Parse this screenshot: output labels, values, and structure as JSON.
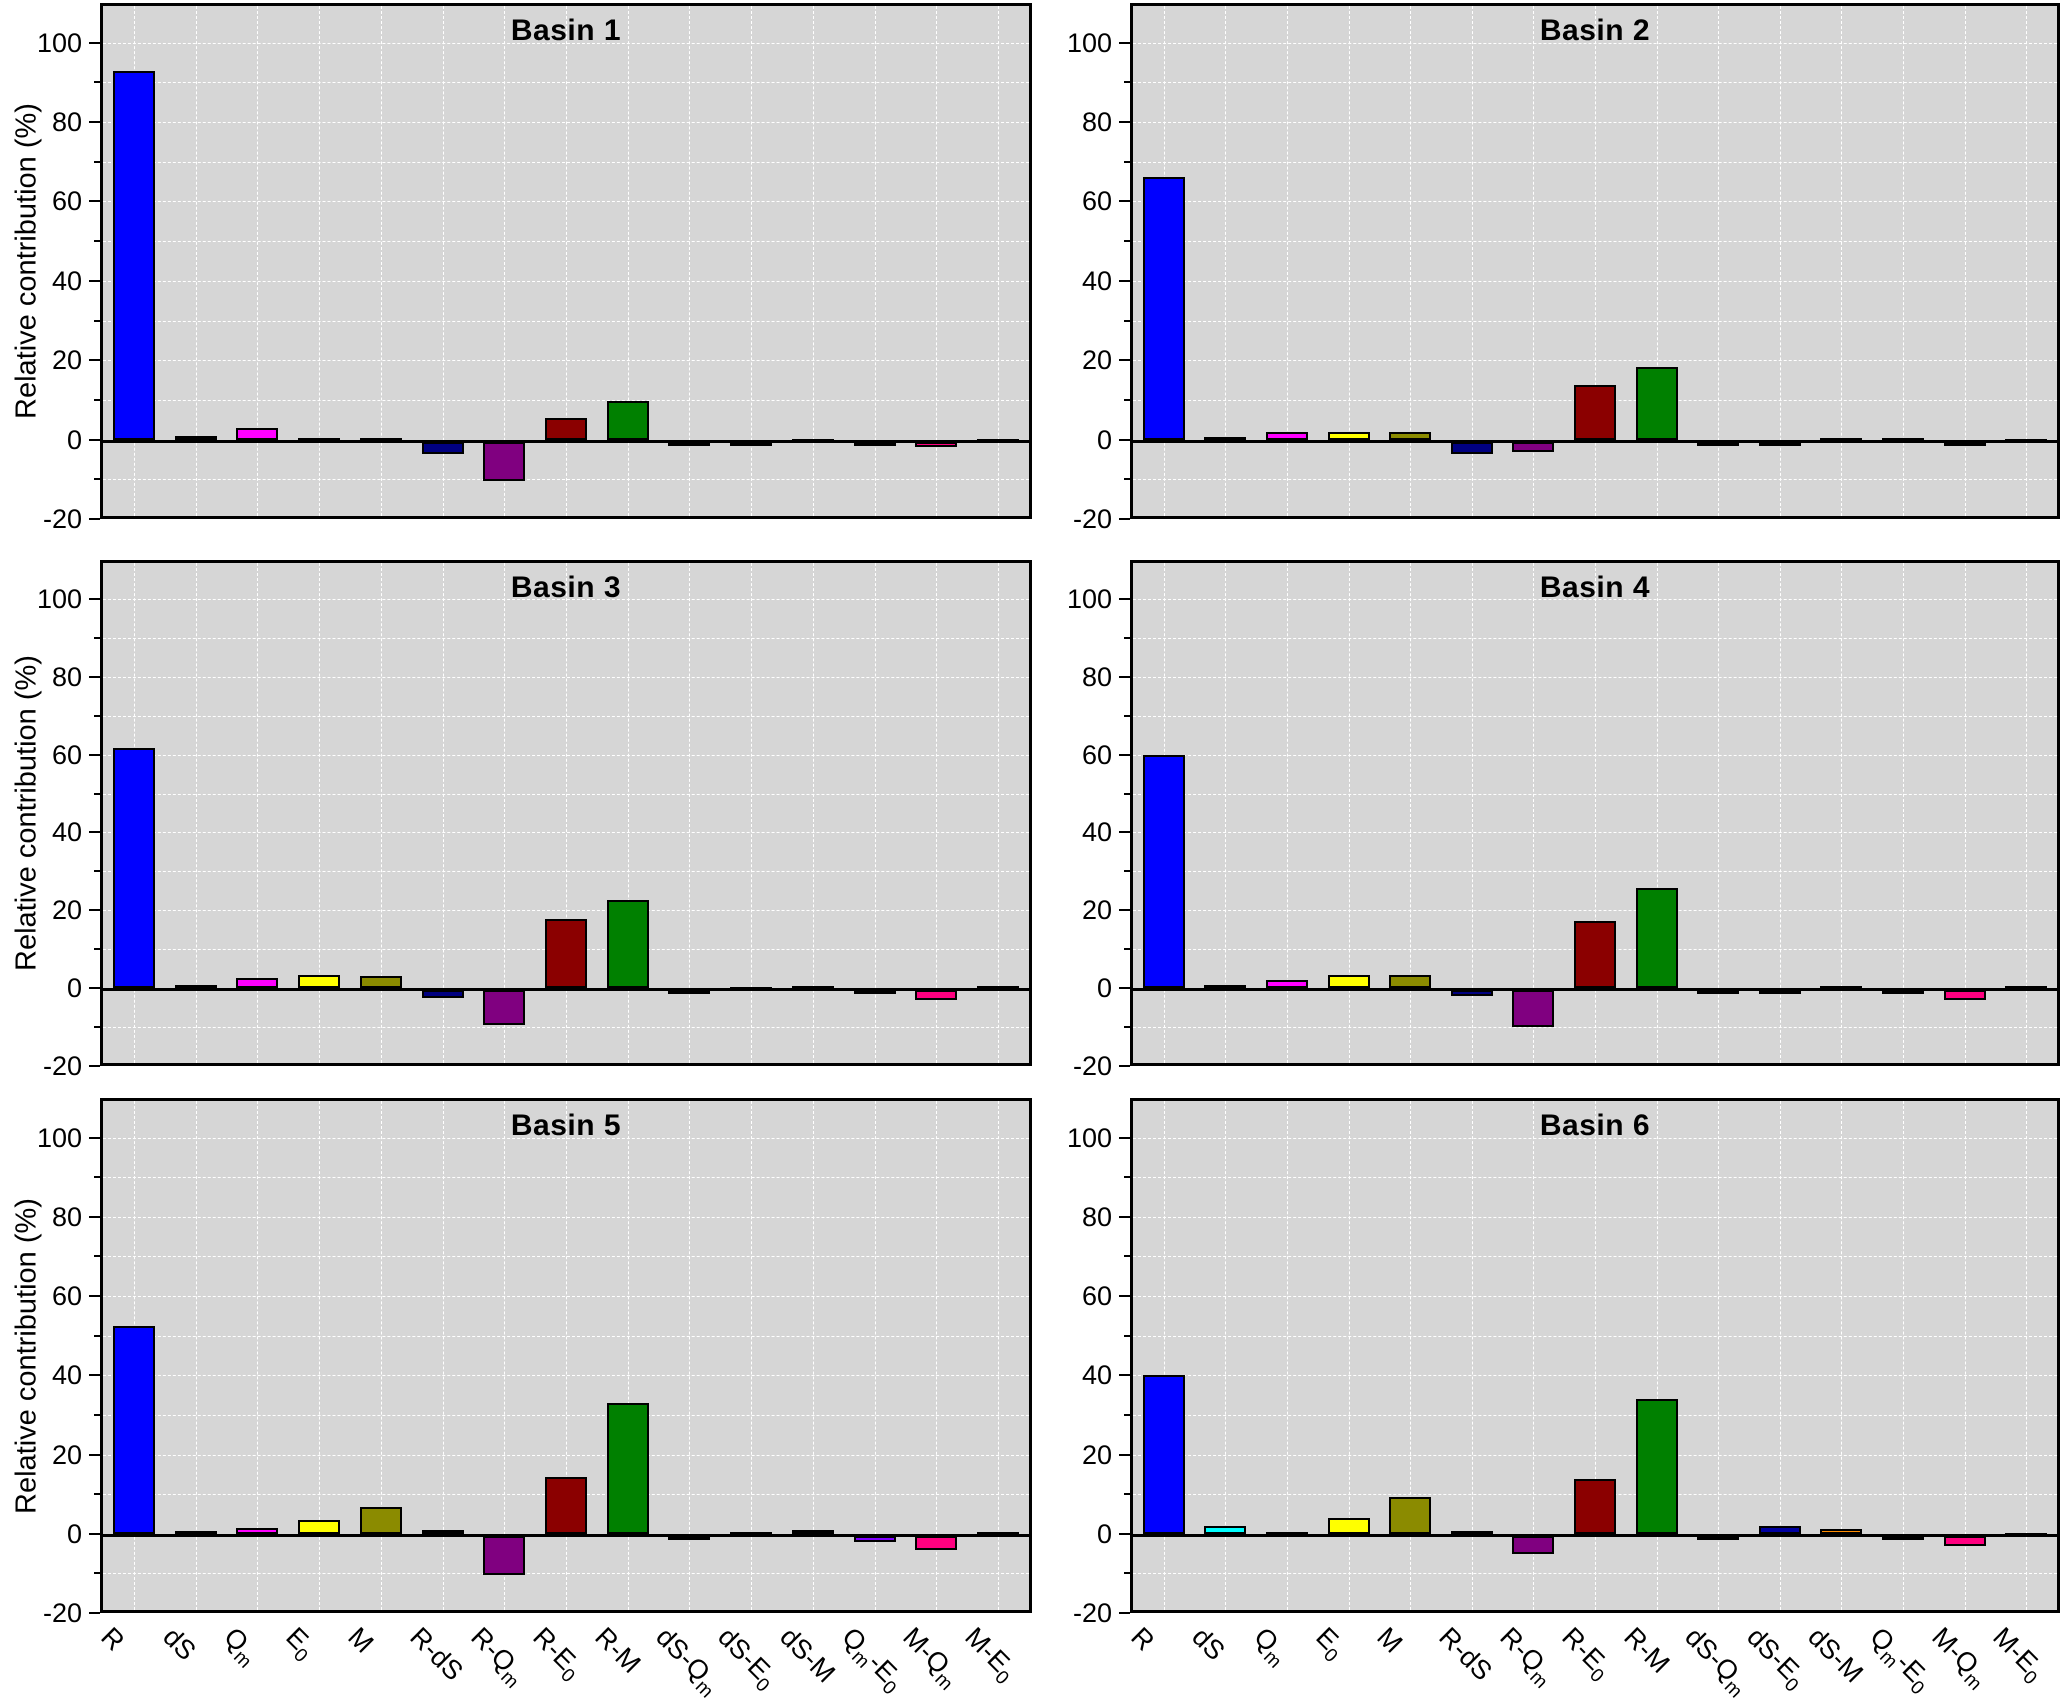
{
  "figure": {
    "ylabel": "Relative contribution (%)"
  },
  "chart_data": {
    "type": "bar",
    "title": "",
    "xlabel": "",
    "ylabel": "Relative contribution (%)",
    "ylim": [
      -20,
      110
    ],
    "yticks_major": [
      -20,
      0,
      20,
      40,
      60,
      80,
      100
    ],
    "grid_interval": 10,
    "grid": "on",
    "legend_position": "none",
    "plot_bg_color": "#d6d6d6",
    "grid_color": "#ffffff",
    "bar_border_color": "#000000",
    "categories": [
      "R",
      "dS",
      "Q_m",
      "E_0",
      "M",
      "R-dS",
      "R-Q_m",
      "R-E_0",
      "R-M",
      "dS-Q_m",
      "dS-E_0",
      "dS-M",
      "Q_m-E_0",
      "M-Q_m",
      "M-E_0"
    ],
    "bar_colors": [
      "#0000ff",
      "#00ffff",
      "#ff00ff",
      "#ffff00",
      "#8b8b00",
      "#000080",
      "#800080",
      "#8b0000",
      "#008000",
      "#191970",
      "#0000a0",
      "#ff8c00",
      "#8000ff",
      "#ff0080",
      "#f2f2f2"
    ],
    "panels": [
      {
        "title": "Basin 1",
        "values": [
          94,
          1,
          3,
          0.4,
          0.6,
          -3,
          -10,
          5.5,
          10,
          -0.4,
          -0.3,
          0.2,
          -0.4,
          -1.2,
          0.3
        ]
      },
      {
        "title": "Basin 2",
        "values": [
          67,
          0.8,
          2,
          2,
          2,
          -3,
          -2.5,
          14,
          18.5,
          -0.2,
          -1,
          0.4,
          0.4,
          -0.8,
          0.2
        ]
      },
      {
        "title": "Basin 3",
        "values": [
          62.5,
          0.8,
          2.5,
          3.5,
          3,
          -2,
          -9,
          18,
          23,
          -1,
          0.3,
          0.5,
          -0.8,
          -2.5,
          0.5
        ]
      },
      {
        "title": "Basin 4",
        "values": [
          60.5,
          0.8,
          2,
          3.5,
          3.5,
          -1.5,
          -9.5,
          17.5,
          26,
          -0.5,
          -0.3,
          0.5,
          -1,
          -2.5,
          0.5
        ]
      },
      {
        "title": "Basin 5",
        "values": [
          53,
          0.8,
          1.5,
          3.5,
          7,
          1,
          -10,
          14.5,
          33.5,
          -0.4,
          0.5,
          1,
          -1.5,
          -3.5,
          0.4
        ]
      },
      {
        "title": "Basin 6",
        "values": [
          40.5,
          2,
          0.4,
          4,
          9.5,
          0.8,
          -4.5,
          14,
          34.5,
          -0.4,
          2,
          1.3,
          -1,
          -2.5,
          0.3
        ]
      }
    ]
  }
}
